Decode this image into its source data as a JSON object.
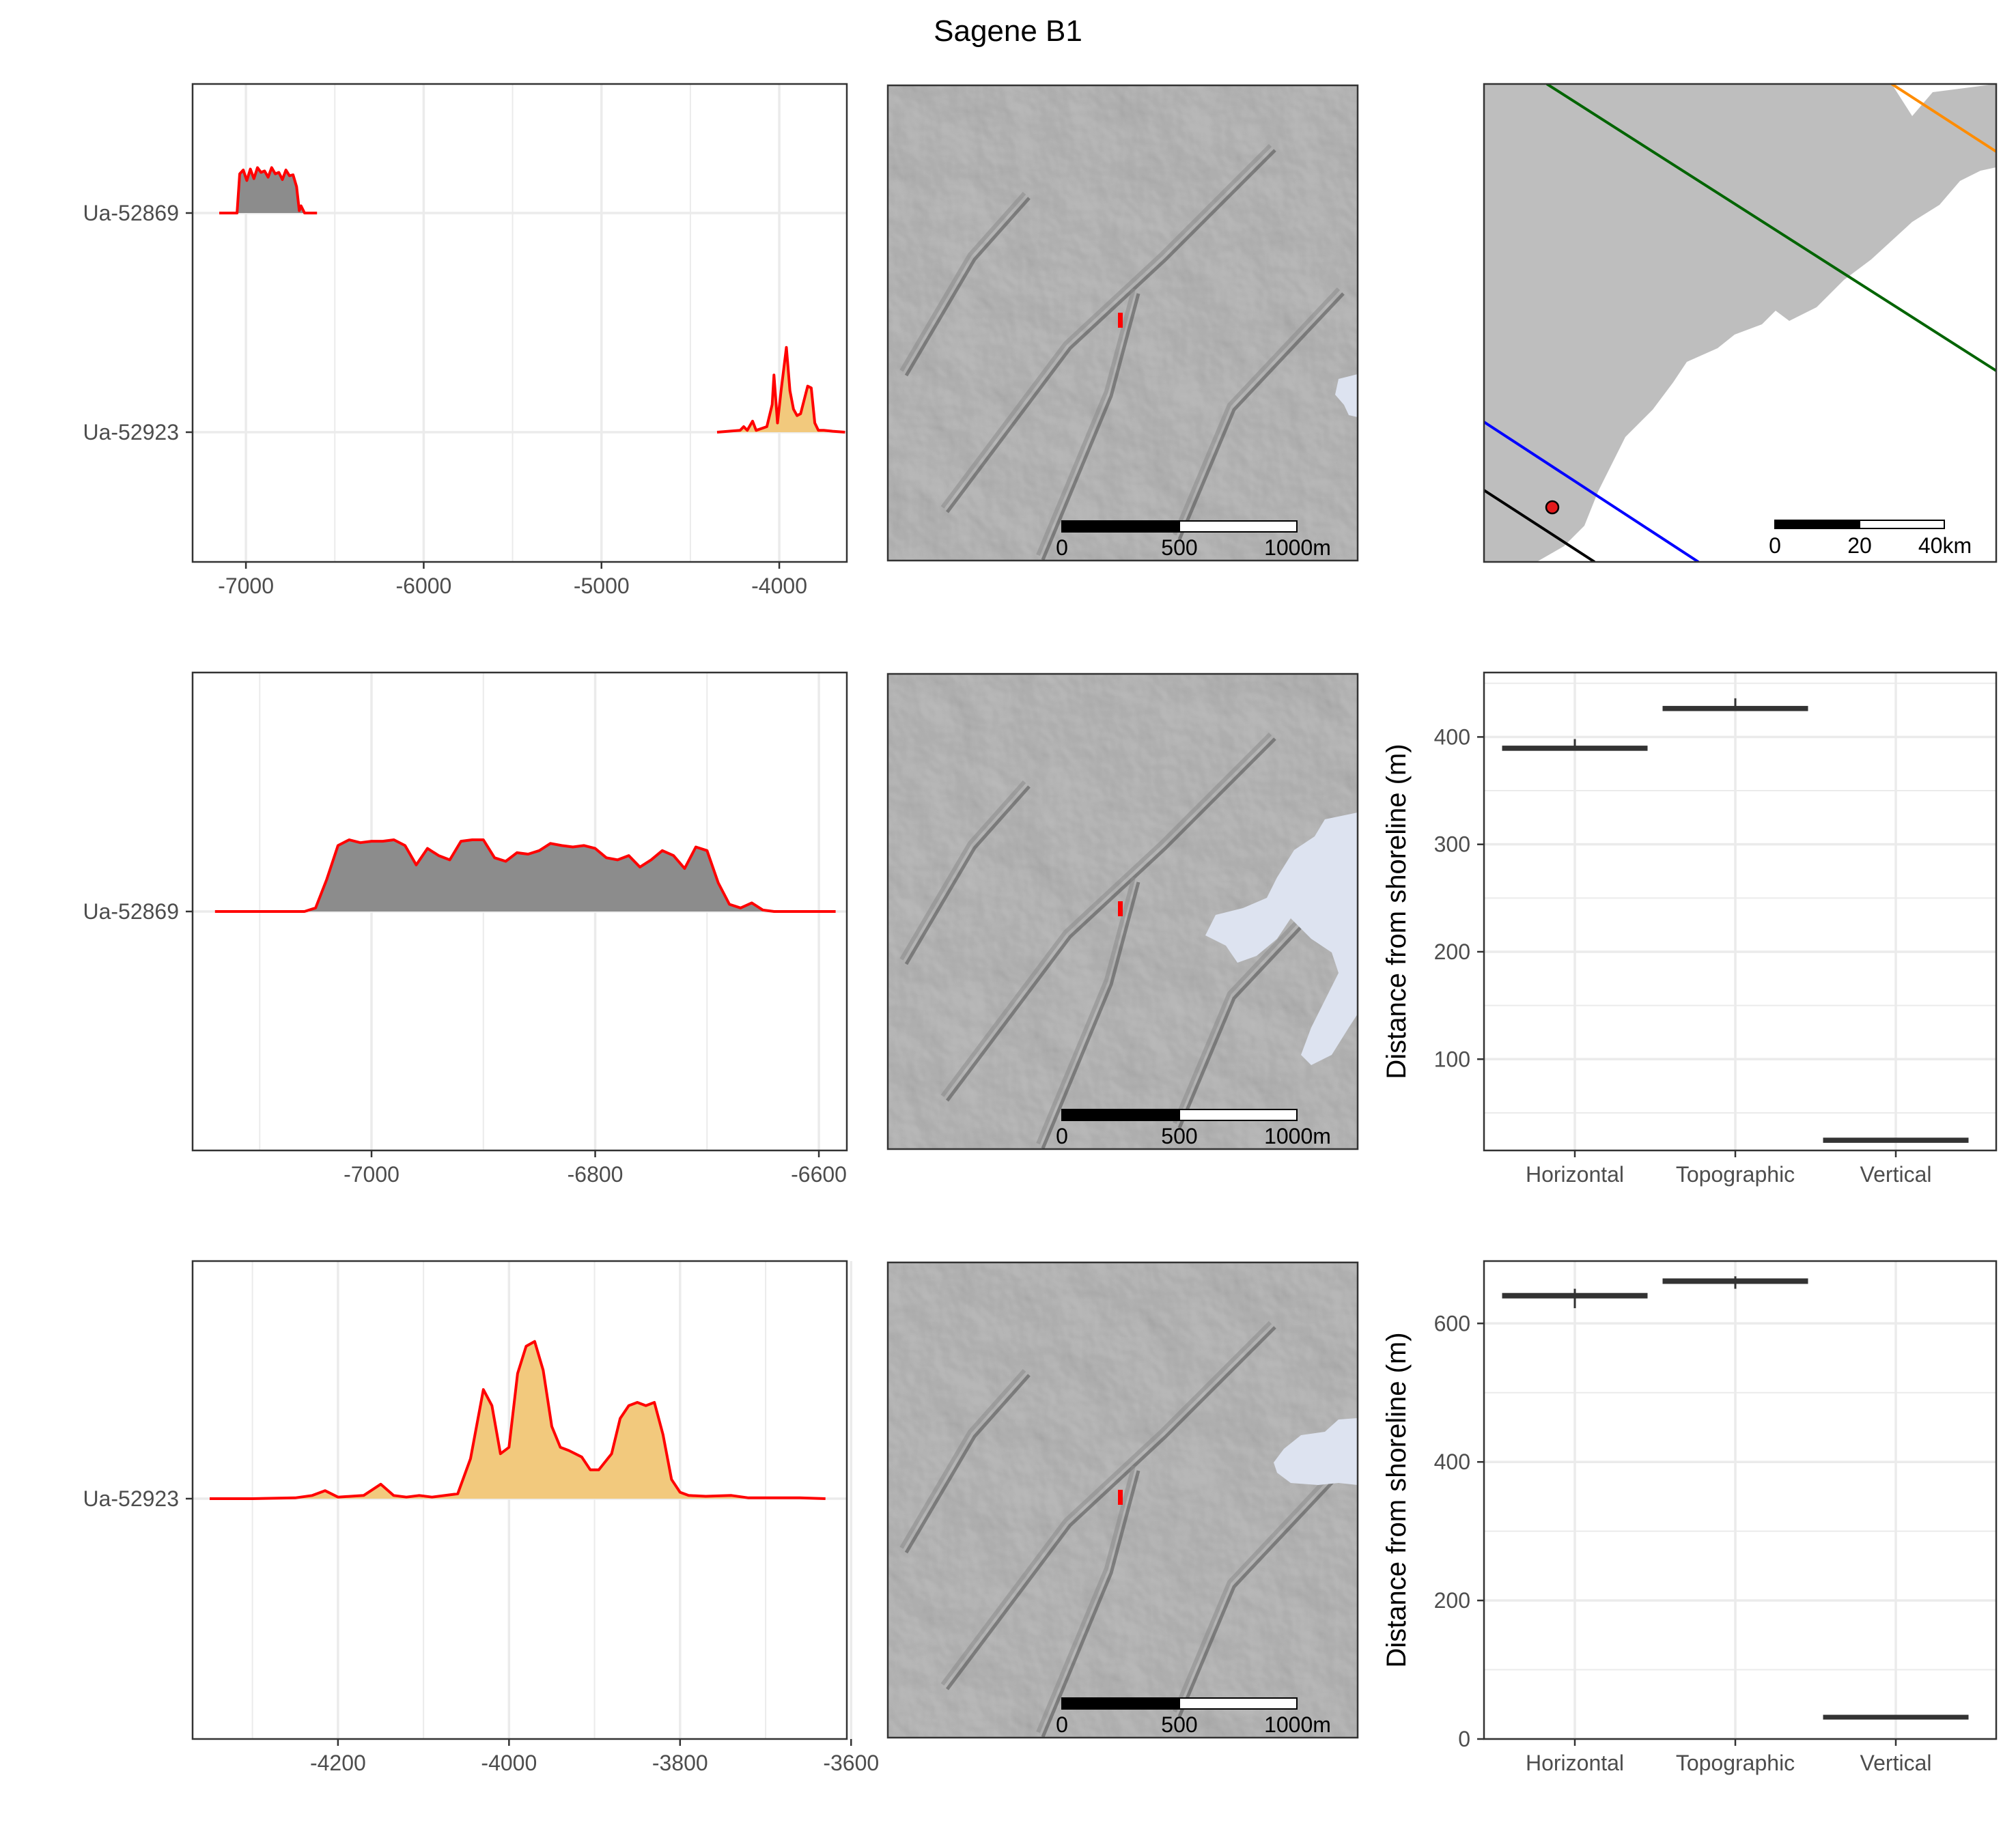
{
  "title": "Sagene B1",
  "colors": {
    "curve": "#ff0000",
    "fill_ua52869": "#8c8c8c",
    "fill_ua52923": "#f2c97d",
    "hillshade": "#6e6e6e",
    "water": "#dde3f0",
    "land": "#bebebe",
    "grid": "#ebebeb",
    "line_green": "#006400",
    "line_orange": "#ff8c00",
    "line_blue": "#0000ff",
    "line_black": "#000000"
  },
  "row1": {
    "density": {
      "x_ticks": [
        "-7000",
        "-6000",
        "-5000",
        "-4000"
      ],
      "y_labels": [
        "Ua-52869",
        "Ua-52923"
      ]
    },
    "hillshade_map": {
      "scalebar": [
        "0",
        "500",
        "1000m"
      ]
    },
    "overview_map": {
      "scalebar": [
        "0",
        "20",
        "40km"
      ]
    }
  },
  "row2": {
    "density": {
      "x_ticks": [
        "-7000",
        "-6800",
        "-6600"
      ],
      "y_labels": [
        "Ua-52869"
      ]
    },
    "hillshade_map": {
      "scalebar": [
        "0",
        "500",
        "1000m"
      ]
    },
    "boxplot": {
      "ylabel": "Distance from shoreline (m)",
      "y_ticks": [
        "100",
        "200",
        "300",
        "400"
      ],
      "categories": [
        "Horizontal",
        "Topographic",
        "Vertical"
      ]
    }
  },
  "row3": {
    "density": {
      "x_ticks": [
        "-4200",
        "-4000",
        "-3800",
        "-3600"
      ],
      "y_labels": [
        "Ua-52923"
      ]
    },
    "hillshade_map": {
      "scalebar": [
        "0",
        "500",
        "1000m"
      ]
    },
    "boxplot": {
      "ylabel": "Distance from shoreline (m)",
      "y_ticks": [
        "0",
        "200",
        "400",
        "600"
      ],
      "categories": [
        "Horizontal",
        "Topographic",
        "Vertical"
      ]
    }
  },
  "chart_data": [
    {
      "type": "area",
      "name": "summed calibrated dates, overview",
      "x_unit": "years BCE/CE (negative = BCE)",
      "xlim": [
        -7300,
        -3620
      ],
      "series": [
        {
          "name": "Ua-52869",
          "x": [
            -7150,
            -7050,
            -7035,
            -7015,
            -6995,
            -6975,
            -6955,
            -6935,
            -6915,
            -6895,
            -6875,
            -6855,
            -6835,
            -6815,
            -6795,
            -6775,
            -6755,
            -6735,
            -6715,
            -6700,
            -6690,
            -6670,
            -6600
          ],
          "y": [
            0,
            0,
            0.82,
            0.9,
            0.68,
            0.92,
            0.72,
            0.95,
            0.85,
            0.88,
            0.75,
            0.95,
            0.82,
            0.85,
            0.7,
            0.9,
            0.78,
            0.8,
            0.55,
            0.05,
            0.15,
            0.0,
            0
          ]
        },
        {
          "name": "Ua-52923",
          "x": [
            -4350,
            -4220,
            -4200,
            -4180,
            -4150,
            -4130,
            -4100,
            -4070,
            -4040,
            -4030,
            -4010,
            -3990,
            -3960,
            -3940,
            -3920,
            -3900,
            -3880,
            -3860,
            -3840,
            -3820,
            -3800,
            -3780,
            -3750,
            -3700,
            -3630
          ],
          "y": [
            0,
            0.02,
            0.06,
            0.02,
            0.12,
            0.02,
            0.04,
            0.06,
            0.3,
            0.62,
            0.1,
            0.45,
            0.92,
            0.45,
            0.25,
            0.18,
            0.2,
            0.35,
            0.5,
            0.48,
            0.1,
            0.02,
            0.02,
            0.01,
            0
          ]
        }
      ],
      "y_categories": [
        "Ua-52869",
        "Ua-52923"
      ]
    },
    {
      "type": "area",
      "name": "Ua-52869 detail",
      "xlim": [
        -7160,
        -6575
      ],
      "series": [
        {
          "name": "Ua-52869",
          "x": [
            -7140,
            -7060,
            -7050,
            -7040,
            -7030,
            -7020,
            -7010,
            -7000,
            -6990,
            -6980,
            -6970,
            -6960,
            -6950,
            -6940,
            -6930,
            -6920,
            -6910,
            -6900,
            -6890,
            -6880,
            -6870,
            -6860,
            -6850,
            -6840,
            -6830,
            -6820,
            -6810,
            -6800,
            -6790,
            -6780,
            -6770,
            -6760,
            -6750,
            -6740,
            -6730,
            -6720,
            -6710,
            -6700,
            -6690,
            -6680,
            -6670,
            -6660,
            -6650,
            -6640,
            -6620,
            -6600,
            -6585
          ],
          "y": [
            0,
            0,
            0.05,
            0.45,
            0.92,
            1.0,
            0.96,
            0.98,
            0.98,
            1.0,
            0.92,
            0.65,
            0.88,
            0.78,
            0.72,
            0.98,
            1.0,
            1.0,
            0.75,
            0.7,
            0.82,
            0.8,
            0.85,
            0.95,
            0.92,
            0.9,
            0.92,
            0.88,
            0.75,
            0.72,
            0.78,
            0.62,
            0.72,
            0.85,
            0.78,
            0.6,
            0.9,
            0.85,
            0.4,
            0.1,
            0.05,
            0.12,
            0.02,
            0.0,
            0,
            0,
            0
          ]
        }
      ]
    },
    {
      "type": "area",
      "name": "Ua-52923 detail",
      "xlim": [
        -4370,
        -3605
      ],
      "series": [
        {
          "name": "Ua-52923",
          "x": [
            -4350,
            -4300,
            -4250,
            -4230,
            -4215,
            -4200,
            -4170,
            -4150,
            -4135,
            -4120,
            -4105,
            -4090,
            -4060,
            -4045,
            -4030,
            -4020,
            -4010,
            -4000,
            -3990,
            -3980,
            -3970,
            -3960,
            -3950,
            -3940,
            -3930,
            -3915,
            -3905,
            -3895,
            -3880,
            -3870,
            -3860,
            -3850,
            -3840,
            -3830,
            -3820,
            -3810,
            -3800,
            -3790,
            -3770,
            -3740,
            -3720,
            -3700,
            -3680,
            -3660,
            -3630
          ],
          "y": [
            0,
            0,
            0.005,
            0.02,
            0.05,
            0.01,
            0.02,
            0.09,
            0.02,
            0.01,
            0.02,
            0.01,
            0.03,
            0.25,
            0.68,
            0.58,
            0.28,
            0.32,
            0.78,
            0.95,
            0.98,
            0.8,
            0.45,
            0.32,
            0.3,
            0.26,
            0.18,
            0.18,
            0.28,
            0.5,
            0.58,
            0.6,
            0.58,
            0.6,
            0.4,
            0.12,
            0.04,
            0.02,
            0.015,
            0.02,
            0.005,
            0.005,
            0.005,
            0.005,
            0
          ]
        }
      ]
    },
    {
      "type": "box",
      "name": "distance from shoreline, row 2",
      "ylabel": "Distance from shoreline (m)",
      "ylim": [
        15,
        460
      ],
      "categories": [
        "Horizontal",
        "Topographic",
        "Vertical"
      ],
      "boxes": [
        {
          "category": "Horizontal",
          "min": 389,
          "q1": 389,
          "median": 390,
          "q3": 390,
          "max": 398
        },
        {
          "category": "Topographic",
          "min": 426,
          "q1": 426,
          "median": 427,
          "q3": 427,
          "max": 436
        },
        {
          "category": "Vertical",
          "min": 24,
          "q1": 24,
          "median": 24.5,
          "q3": 25,
          "max": 25
        }
      ]
    },
    {
      "type": "box",
      "name": "distance from shoreline, row 3",
      "ylabel": "Distance from shoreline (m)",
      "ylim": [
        0,
        690
      ],
      "categories": [
        "Horizontal",
        "Topographic",
        "Vertical"
      ],
      "boxes": [
        {
          "category": "Horizontal",
          "min": 622,
          "q1": 639,
          "median": 640,
          "q3": 641,
          "max": 650
        },
        {
          "category": "Topographic",
          "min": 650,
          "q1": 660,
          "median": 661,
          "q3": 662,
          "max": 668
        },
        {
          "category": "Vertical",
          "min": 31,
          "q1": 31,
          "median": 31.5,
          "q3": 32,
          "max": 32
        }
      ]
    }
  ]
}
